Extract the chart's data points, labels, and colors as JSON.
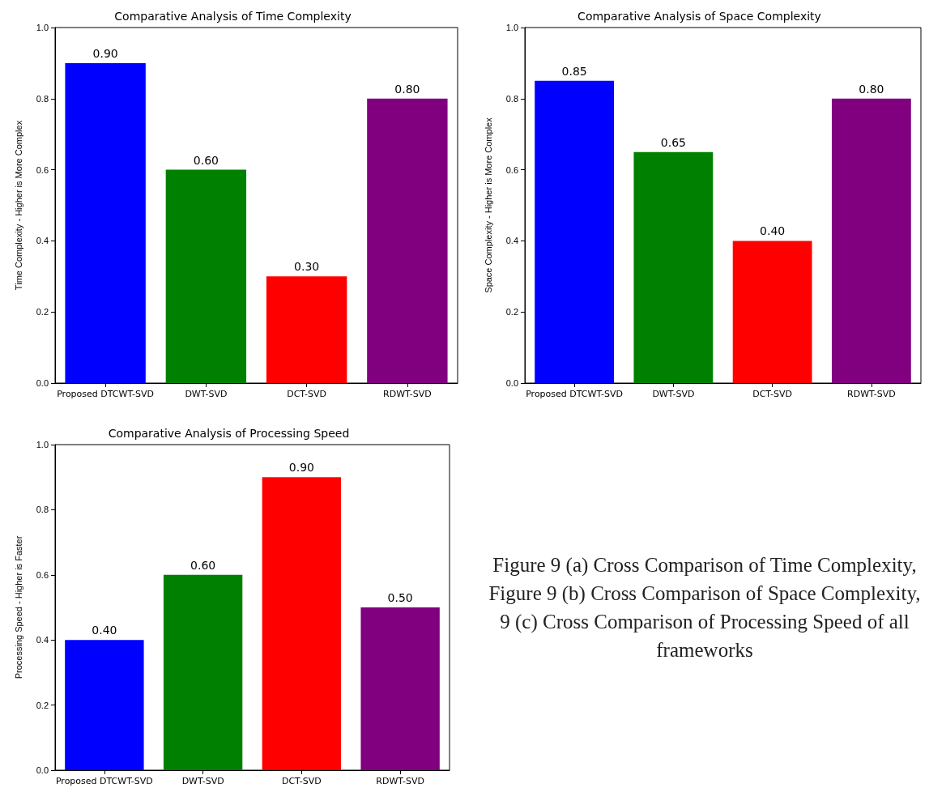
{
  "chart_data": [
    {
      "type": "bar",
      "title": "Comparative Analysis of Time Complexity",
      "ylabel": "Time Complexity - Higher is More Complex",
      "categories": [
        "Proposed DTCWT-SVD",
        "DWT-SVD",
        "DCT-SVD",
        "RDWT-SVD"
      ],
      "values": [
        0.9,
        0.6,
        0.3,
        0.8
      ],
      "value_labels": [
        "0.90",
        "0.60",
        "0.30",
        "0.80"
      ],
      "colors": [
        "#0000ff",
        "#008000",
        "#ff0000",
        "#800080"
      ],
      "ylim": [
        0,
        1
      ],
      "yticks": [
        {
          "value": 0,
          "label": "0.0"
        },
        {
          "value": 0.2,
          "label": "0.2"
        },
        {
          "value": 0.4,
          "label": "0.4"
        },
        {
          "value": 0.6,
          "label": "0.6"
        },
        {
          "value": 0.8,
          "label": "0.8"
        },
        {
          "value": 1,
          "label": "1.0"
        }
      ]
    },
    {
      "type": "bar",
      "title": "Comparative Analysis of Space Complexity",
      "ylabel": "Space Complexity - Higher is More Complex",
      "categories": [
        "Proposed DTCWT-SVD",
        "DWT-SVD",
        "DCT-SVD",
        "RDWT-SVD"
      ],
      "values": [
        0.85,
        0.65,
        0.4,
        0.8
      ],
      "value_labels": [
        "0.85",
        "0.65",
        "0.40",
        "0.80"
      ],
      "colors": [
        "#0000ff",
        "#008000",
        "#ff0000",
        "#800080"
      ],
      "ylim": [
        0,
        1
      ],
      "yticks": [
        {
          "value": 0,
          "label": "0.0"
        },
        {
          "value": 0.2,
          "label": "0.2"
        },
        {
          "value": 0.4,
          "label": "0.4"
        },
        {
          "value": 0.6,
          "label": "0.6"
        },
        {
          "value": 0.8,
          "label": "0.8"
        },
        {
          "value": 1,
          "label": "1.0"
        }
      ]
    },
    {
      "type": "bar",
      "title": "Comparative Analysis of Processing Speed",
      "ylabel": "Processing Speed - Higher is Faster",
      "categories": [
        "Proposed DTCWT-SVD",
        "DWT-SVD",
        "DCT-SVD",
        "RDWT-SVD"
      ],
      "values": [
        0.4,
        0.6,
        0.9,
        0.5
      ],
      "value_labels": [
        "0.40",
        "0.60",
        "0.90",
        "0.50"
      ],
      "colors": [
        "#0000ff",
        "#008000",
        "#ff0000",
        "#800080"
      ],
      "ylim": [
        0,
        1
      ],
      "yticks": [
        {
          "value": 0,
          "label": "0.0"
        },
        {
          "value": 0.2,
          "label": "0.2"
        },
        {
          "value": 0.4,
          "label": "0.4"
        },
        {
          "value": 0.6,
          "label": "0.6"
        },
        {
          "value": 0.8,
          "label": "0.8"
        },
        {
          "value": 1,
          "label": "1.0"
        }
      ]
    },
    {
      "type": "other",
      "annotations": [
        "Figure 9 (a) Cross Comparison of Time Complexity, Figure 9 (b) Cross Comparison of Space Complexity, 9 (c) Cross Comparison of Processing Speed of all frameworks"
      ]
    }
  ]
}
